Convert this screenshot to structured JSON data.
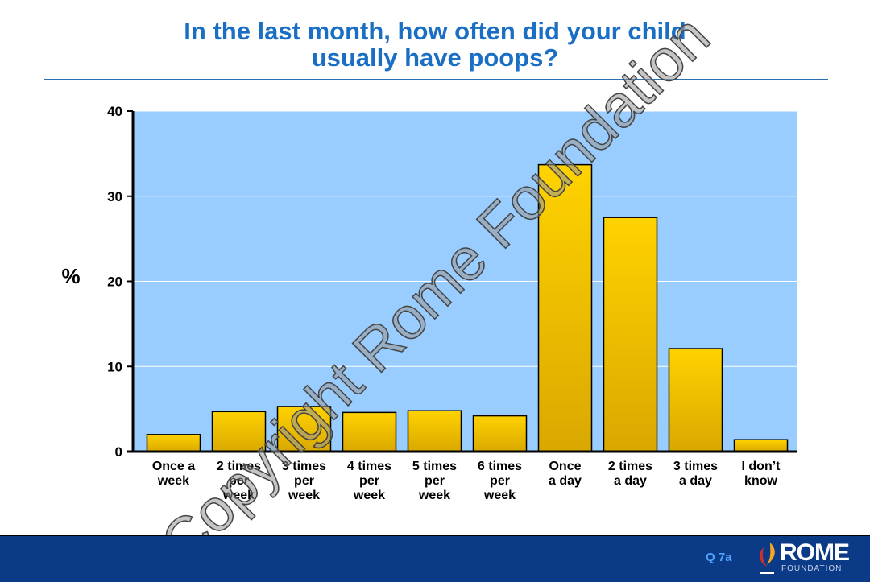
{
  "chart_data": {
    "type": "bar",
    "title": "In the last month, how often did your child\nusually have poops?",
    "ylabel": "%",
    "xlabel": "",
    "ylim": [
      0,
      40
    ],
    "yticks": [
      0,
      10,
      20,
      30,
      40
    ],
    "grid": true,
    "categories": [
      "Once a\nweek",
      "2 times\nper\nweek",
      "3 times\nper\nweek",
      "4 times\nper\nweek",
      "5 times\nper\nweek",
      "6 times\nper\nweek",
      "Once\na day",
      "2 times\na day",
      "3 times\na day",
      "I don’t\nknow"
    ],
    "values": [
      2.0,
      4.7,
      5.3,
      4.6,
      4.8,
      4.2,
      33.7,
      27.5,
      12.1,
      1.4
    ],
    "colors": {
      "bar": "#ffcc00",
      "plot_bg": "#99ccff",
      "title": "#1a6fc4"
    }
  },
  "footer": {
    "question": "Q 7a",
    "logo_word": "ROME",
    "logo_sub": "FOUNDATION"
  },
  "watermark": "Copyright Rome Foundation"
}
